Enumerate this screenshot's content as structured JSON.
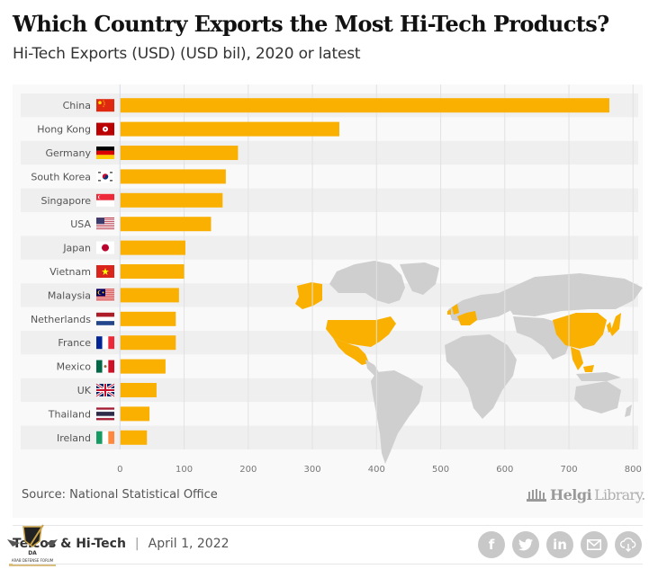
{
  "header": {
    "title": "Which Country Exports the Most Hi-Tech Products?",
    "subtitle": "Hi-Tech Exports (USD) (USD bil), 2020 or latest"
  },
  "chart_data": {
    "type": "bar",
    "orientation": "horizontal",
    "title": "Which Country Exports the Most Hi-Tech Products?",
    "subtitle": "Hi-Tech Exports (USD) (USD bil), 2020 or latest",
    "xlabel": "",
    "ylabel": "",
    "xlim": [
      0,
      800
    ],
    "xticks": [
      0,
      100,
      200,
      300,
      400,
      500,
      600,
      700,
      800
    ],
    "grid": true,
    "bar_color": "#F9B000",
    "categories": [
      "China",
      "Hong Kong",
      "Germany",
      "South Korea",
      "Singapore",
      "USA",
      "Japan",
      "Vietnam",
      "Malaysia",
      "Netherlands",
      "France",
      "Mexico",
      "UK",
      "Thailand",
      "Ireland"
    ],
    "values": [
      763,
      342,
      184,
      165,
      160,
      142,
      102,
      100,
      92,
      87,
      87,
      71,
      57,
      46,
      42
    ],
    "flags": [
      "cn",
      "hk",
      "de",
      "kr",
      "sg",
      "us",
      "jp",
      "vn",
      "my",
      "nl",
      "fr",
      "mx",
      "gb",
      "th",
      "ie"
    ],
    "background_map": "world-map-highlighting-listed-countries",
    "map_highlight_color": "#F9B000",
    "map_base_color": "#CFCFCF"
  },
  "source": "Source: National Statistical Office",
  "brand": {
    "part1": "Helgi",
    "part2": "Library."
  },
  "footer": {
    "category": "Telcos & Hi-Tech",
    "separator": "|",
    "date": "April 1, 2022",
    "social": [
      {
        "name": "facebook-icon",
        "glyph": "f"
      },
      {
        "name": "twitter-icon",
        "glyph": "t"
      },
      {
        "name": "linkedin-icon",
        "glyph": "in"
      },
      {
        "name": "email-icon",
        "glyph": "✉"
      },
      {
        "name": "download-icon",
        "glyph": "⇩"
      }
    ]
  },
  "watermark": {
    "text": "ARAB DEFENSE FORUM",
    "abbr": "DA"
  }
}
